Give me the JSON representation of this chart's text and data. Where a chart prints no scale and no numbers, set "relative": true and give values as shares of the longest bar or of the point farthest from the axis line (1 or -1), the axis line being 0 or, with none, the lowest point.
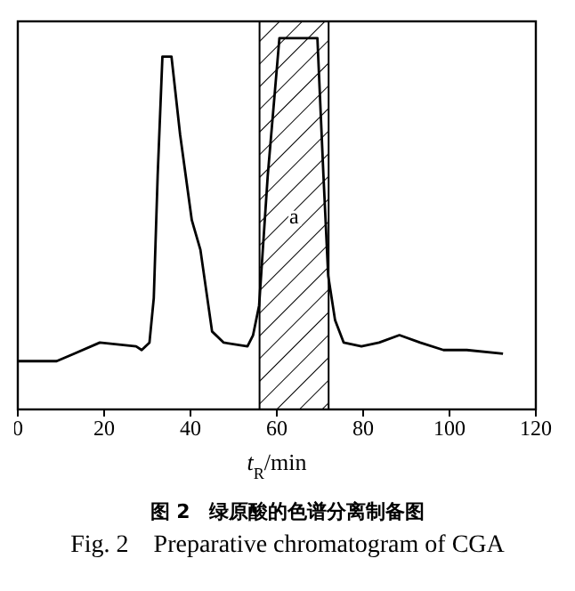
{
  "chart_data": {
    "type": "line",
    "relative": true,
    "xlabel": "t$_{R}$/min",
    "xlim": [
      0,
      120
    ],
    "xticks": [
      0,
      20,
      40,
      60,
      80,
      100,
      120
    ],
    "marker": "none",
    "x": [
      0,
      9,
      13,
      19,
      27.4,
      28.7,
      30.5,
      31.5,
      32.4,
      33.5,
      35.6,
      37.6,
      40.3,
      42.3,
      45,
      47.7,
      53.2,
      54.5,
      55.9,
      57.9,
      60.6,
      69.4,
      70.8,
      71.9,
      73.5,
      75.5,
      79.6,
      83.7,
      88.4,
      93.2,
      98.6,
      104,
      112.4
    ],
    "series": [
      {
        "color": "#000000",
        "values": [
          0.13,
          0.13,
          0.15,
          0.18,
          0.17,
          0.16,
          0.18,
          0.3,
          0.63,
          0.95,
          0.95,
          0.74,
          0.51,
          0.43,
          0.21,
          0.18,
          0.17,
          0.2,
          0.28,
          0.63,
          1,
          1,
          0.63,
          0.36,
          0.24,
          0.18,
          0.17,
          0.18,
          0.2,
          0.18,
          0.16,
          0.16,
          0.15
        ]
      }
    ],
    "bands": [
      {
        "axis": "x",
        "from": 56,
        "to": 72,
        "label": "a"
      }
    ],
    "annotations": [
      "图 2　绿原酸的色谱分离制备图",
      "Fig. 2　Preparative chromatogram of CGA"
    ]
  }
}
